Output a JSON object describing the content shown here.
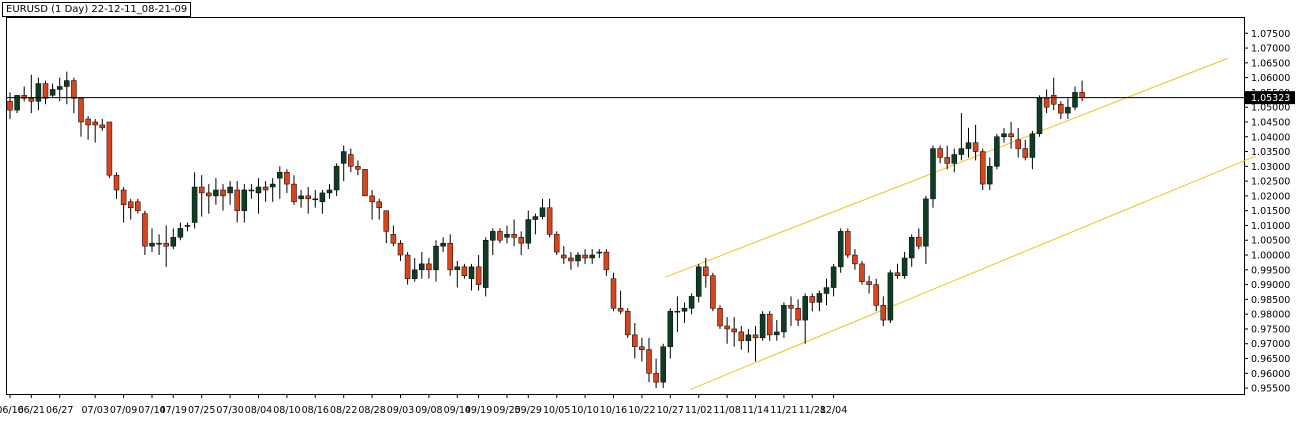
{
  "window": {
    "title": "EURUSD (1 Day) 22-12-11_08-21-09"
  },
  "colors": {
    "up": "#0f3d24",
    "down": "#d9441c",
    "wick": "#000000",
    "channel": "#f2c21b",
    "price_line": "#000000",
    "price_tag_bg": "#000000",
    "price_tag_text": "#ffffff"
  },
  "chart_data": {
    "type": "candlestick",
    "symbol": "EURUSD",
    "timeframe": "1 Day",
    "ylim": [
      0.953,
      1.0805
    ],
    "current_price": 1.05323,
    "current_price_label": "1.05323",
    "y_ticks": [
      "1.07500",
      "1.07000",
      "1.06500",
      "1.06000",
      "1.05500",
      "1.05000",
      "1.04500",
      "1.04000",
      "1.03500",
      "1.03000",
      "1.02500",
      "1.02000",
      "1.01500",
      "1.01000",
      "1.00500",
      "1.00000",
      "0.99500",
      "0.99000",
      "0.98500",
      "0.98000",
      "0.97500",
      "0.97000",
      "0.96500",
      "0.96000",
      "0.95500"
    ],
    "x_ticks": [
      {
        "label": "06/16",
        "index": 0
      },
      {
        "label": "06/21",
        "index": 3
      },
      {
        "label": "06/27",
        "index": 7
      },
      {
        "label": "07/03",
        "index": 12
      },
      {
        "label": "07/09",
        "index": 16
      },
      {
        "label": "07/14",
        "index": 20
      },
      {
        "label": "07/19",
        "index": 23
      },
      {
        "label": "07/25",
        "index": 27
      },
      {
        "label": "07/30",
        "index": 31
      },
      {
        "label": "08/04",
        "index": 35
      },
      {
        "label": "08/10",
        "index": 39
      },
      {
        "label": "08/16",
        "index": 43
      },
      {
        "label": "08/22",
        "index": 47
      },
      {
        "label": "08/28",
        "index": 51
      },
      {
        "label": "09/03",
        "index": 55
      },
      {
        "label": "09/08",
        "index": 59
      },
      {
        "label": "09/14",
        "index": 63
      },
      {
        "label": "09/19",
        "index": 66
      },
      {
        "label": "09/25",
        "index": 70
      },
      {
        "label": "09/29",
        "index": 73
      },
      {
        "label": "10/05",
        "index": 77
      },
      {
        "label": "10/10",
        "index": 81
      },
      {
        "label": "10/16",
        "index": 85
      },
      {
        "label": "10/22",
        "index": 89
      },
      {
        "label": "10/27",
        "index": 93
      },
      {
        "label": "11/02",
        "index": 97
      },
      {
        "label": "11/08",
        "index": 101
      },
      {
        "label": "11/14",
        "index": 105
      },
      {
        "label": "11/21",
        "index": 109
      },
      {
        "label": "11/28",
        "index": 113
      },
      {
        "label": "12/04",
        "index": 116
      }
    ],
    "candles": [
      {
        "o": 1.052,
        "h": 1.055,
        "l": 1.046,
        "c": 1.049
      },
      {
        "o": 1.049,
        "h": 1.054,
        "l": 1.048,
        "c": 1.054
      },
      {
        "o": 1.054,
        "h": 1.057,
        "l": 1.052,
        "c": 1.053
      },
      {
        "o": 1.053,
        "h": 1.061,
        "l": 1.048,
        "c": 1.052
      },
      {
        "o": 1.052,
        "h": 1.06,
        "l": 1.049,
        "c": 1.058
      },
      {
        "o": 1.058,
        "h": 1.059,
        "l": 1.051,
        "c": 1.053
      },
      {
        "o": 1.054,
        "h": 1.058,
        "l": 1.053,
        "c": 1.056
      },
      {
        "o": 1.056,
        "h": 1.06,
        "l": 1.052,
        "c": 1.057
      },
      {
        "o": 1.057,
        "h": 1.062,
        "l": 1.051,
        "c": 1.059
      },
      {
        "o": 1.059,
        "h": 1.06,
        "l": 1.048,
        "c": 1.053
      },
      {
        "o": 1.053,
        "h": 1.053,
        "l": 1.04,
        "c": 1.045
      },
      {
        "o": 1.046,
        "h": 1.047,
        "l": 1.039,
        "c": 1.044
      },
      {
        "o": 1.045,
        "h": 1.046,
        "l": 1.038,
        "c": 1.044
      },
      {
        "o": 1.044,
        "h": 1.046,
        "l": 1.042,
        "c": 1.043
      },
      {
        "o": 1.045,
        "h": 1.045,
        "l": 1.026,
        "c": 1.027
      },
      {
        "o": 1.027,
        "h": 1.028,
        "l": 1.019,
        "c": 1.022
      },
      {
        "o": 1.022,
        "h": 1.023,
        "l": 1.011,
        "c": 1.017
      },
      {
        "o": 1.018,
        "h": 1.019,
        "l": 1.012,
        "c": 1.016
      },
      {
        "o": 1.018,
        "h": 1.019,
        "l": 1.014,
        "c": 1.015
      },
      {
        "o": 1.014,
        "h": 1.015,
        "l": 1.0,
        "c": 1.003
      },
      {
        "o": 1.003,
        "h": 1.009,
        "l": 1.001,
        "c": 1.004
      },
      {
        "o": 1.004,
        "h": 1.007,
        "l": 1.0,
        "c": 1.004
      },
      {
        "o": 1.004,
        "h": 1.01,
        "l": 0.996,
        "c": 1.003
      },
      {
        "o": 1.003,
        "h": 1.009,
        "l": 1.002,
        "c": 1.006
      },
      {
        "o": 1.006,
        "h": 1.011,
        "l": 1.005,
        "c": 1.009
      },
      {
        "o": 1.01,
        "h": 1.011,
        "l": 1.008,
        "c": 1.01
      },
      {
        "o": 1.011,
        "h": 1.028,
        "l": 1.009,
        "c": 1.023
      },
      {
        "o": 1.023,
        "h": 1.027,
        "l": 1.013,
        "c": 1.021
      },
      {
        "o": 1.021,
        "h": 1.024,
        "l": 1.014,
        "c": 1.02
      },
      {
        "o": 1.02,
        "h": 1.026,
        "l": 1.017,
        "c": 1.022
      },
      {
        "o": 1.022,
        "h": 1.024,
        "l": 1.015,
        "c": 1.02
      },
      {
        "o": 1.021,
        "h": 1.025,
        "l": 1.017,
        "c": 1.023
      },
      {
        "o": 1.022,
        "h": 1.025,
        "l": 1.011,
        "c": 1.015
      },
      {
        "o": 1.015,
        "h": 1.024,
        "l": 1.011,
        "c": 1.022
      },
      {
        "o": 1.022,
        "h": 1.024,
        "l": 1.019,
        "c": 1.022
      },
      {
        "o": 1.021,
        "h": 1.026,
        "l": 1.014,
        "c": 1.023
      },
      {
        "o": 1.023,
        "h": 1.025,
        "l": 1.018,
        "c": 1.022
      },
      {
        "o": 1.023,
        "h": 1.026,
        "l": 1.018,
        "c": 1.024
      },
      {
        "o": 1.026,
        "h": 1.03,
        "l": 1.019,
        "c": 1.028
      },
      {
        "o": 1.028,
        "h": 1.029,
        "l": 1.021,
        "c": 1.024
      },
      {
        "o": 1.024,
        "h": 1.027,
        "l": 1.017,
        "c": 1.018
      },
      {
        "o": 1.019,
        "h": 1.022,
        "l": 1.016,
        "c": 1.02
      },
      {
        "o": 1.02,
        "h": 1.023,
        "l": 1.014,
        "c": 1.019
      },
      {
        "o": 1.019,
        "h": 1.022,
        "l": 1.016,
        "c": 1.019
      },
      {
        "o": 1.018,
        "h": 1.022,
        "l": 1.014,
        "c": 1.021
      },
      {
        "o": 1.021,
        "h": 1.024,
        "l": 1.019,
        "c": 1.022
      },
      {
        "o": 1.022,
        "h": 1.031,
        "l": 1.02,
        "c": 1.03
      },
      {
        "o": 1.031,
        "h": 1.037,
        "l": 1.025,
        "c": 1.035
      },
      {
        "o": 1.034,
        "h": 1.036,
        "l": 1.028,
        "c": 1.03
      },
      {
        "o": 1.03,
        "h": 1.032,
        "l": 1.027,
        "c": 1.029
      },
      {
        "o": 1.029,
        "h": 1.029,
        "l": 1.02,
        "c": 1.02
      },
      {
        "o": 1.02,
        "h": 1.022,
        "l": 1.012,
        "c": 1.018
      },
      {
        "o": 1.018,
        "h": 1.019,
        "l": 1.012,
        "c": 1.016
      },
      {
        "o": 1.015,
        "h": 1.015,
        "l": 1.004,
        "c": 1.008
      },
      {
        "o": 1.007,
        "h": 1.01,
        "l": 1.003,
        "c": 1.004
      },
      {
        "o": 1.004,
        "h": 1.005,
        "l": 0.998,
        "c": 1.0
      },
      {
        "o": 1.0,
        "h": 1.001,
        "l": 0.99,
        "c": 0.992
      },
      {
        "o": 0.992,
        "h": 0.999,
        "l": 0.991,
        "c": 0.995
      },
      {
        "o": 0.995,
        "h": 1.001,
        "l": 0.992,
        "c": 0.997
      },
      {
        "o": 0.997,
        "h": 0.999,
        "l": 0.992,
        "c": 0.995
      },
      {
        "o": 0.995,
        "h": 1.005,
        "l": 0.991,
        "c": 1.003
      },
      {
        "o": 1.003,
        "h": 1.006,
        "l": 1.001,
        "c": 1.004
      },
      {
        "o": 1.004,
        "h": 1.007,
        "l": 0.993,
        "c": 0.995
      },
      {
        "o": 0.995,
        "h": 0.998,
        "l": 0.989,
        "c": 0.996
      },
      {
        "o": 0.996,
        "h": 0.997,
        "l": 0.992,
        "c": 0.993
      },
      {
        "o": 0.992,
        "h": 0.997,
        "l": 0.988,
        "c": 0.996
      },
      {
        "o": 0.996,
        "h": 1.0,
        "l": 0.988,
        "c": 0.99
      },
      {
        "o": 0.989,
        "h": 1.006,
        "l": 0.986,
        "c": 1.005
      },
      {
        "o": 1.005,
        "h": 1.009,
        "l": 1.0,
        "c": 1.008
      },
      {
        "o": 1.008,
        "h": 1.009,
        "l": 1.004,
        "c": 1.005
      },
      {
        "o": 1.006,
        "h": 1.01,
        "l": 1.004,
        "c": 1.007
      },
      {
        "o": 1.007,
        "h": 1.012,
        "l": 1.003,
        "c": 1.006
      },
      {
        "o": 1.006,
        "h": 1.008,
        "l": 1.0,
        "c": 1.004
      },
      {
        "o": 1.004,
        "h": 1.015,
        "l": 1.002,
        "c": 1.012
      },
      {
        "o": 1.012,
        "h": 1.014,
        "l": 1.007,
        "c": 1.013
      },
      {
        "o": 1.013,
        "h": 1.019,
        "l": 1.012,
        "c": 1.016
      },
      {
        "o": 1.016,
        "h": 1.019,
        "l": 1.006,
        "c": 1.007
      },
      {
        "o": 1.007,
        "h": 1.008,
        "l": 1.0,
        "c": 1.001
      },
      {
        "o": 1.0,
        "h": 1.003,
        "l": 0.997,
        "c": 0.999
      },
      {
        "o": 0.999,
        "h": 1.001,
        "l": 0.995,
        "c": 0.998
      },
      {
        "o": 0.998,
        "h": 1.001,
        "l": 0.996,
        "c": 1.0
      },
      {
        "o": 1.0,
        "h": 1.002,
        "l": 0.997,
        "c": 0.999
      },
      {
        "o": 0.999,
        "h": 1.002,
        "l": 0.997,
        "c": 1.0
      },
      {
        "o": 1.001,
        "h": 1.002,
        "l": 0.999,
        "c": 1.001
      },
      {
        "o": 1.001,
        "h": 1.002,
        "l": 0.993,
        "c": 0.995
      },
      {
        "o": 0.992,
        "h": 0.994,
        "l": 0.981,
        "c": 0.982
      },
      {
        "o": 0.982,
        "h": 0.988,
        "l": 0.98,
        "c": 0.981
      },
      {
        "o": 0.981,
        "h": 0.982,
        "l": 0.972,
        "c": 0.973
      },
      {
        "o": 0.973,
        "h": 0.977,
        "l": 0.965,
        "c": 0.969
      },
      {
        "o": 0.969,
        "h": 0.972,
        "l": 0.964,
        "c": 0.968
      },
      {
        "o": 0.968,
        "h": 0.972,
        "l": 0.957,
        "c": 0.96
      },
      {
        "o": 0.96,
        "h": 0.965,
        "l": 0.955,
        "c": 0.957
      },
      {
        "o": 0.957,
        "h": 0.97,
        "l": 0.955,
        "c": 0.969
      },
      {
        "o": 0.969,
        "h": 0.982,
        "l": 0.965,
        "c": 0.981
      },
      {
        "o": 0.981,
        "h": 0.986,
        "l": 0.974,
        "c": 0.981
      },
      {
        "o": 0.981,
        "h": 0.984,
        "l": 0.977,
        "c": 0.982
      },
      {
        "o": 0.982,
        "h": 0.987,
        "l": 0.98,
        "c": 0.986
      },
      {
        "o": 0.986,
        "h": 0.997,
        "l": 0.984,
        "c": 0.996
      },
      {
        "o": 0.996,
        "h": 0.999,
        "l": 0.989,
        "c": 0.993
      },
      {
        "o": 0.993,
        "h": 0.994,
        "l": 0.981,
        "c": 0.982
      },
      {
        "o": 0.982,
        "h": 0.983,
        "l": 0.975,
        "c": 0.976
      },
      {
        "o": 0.976,
        "h": 0.979,
        "l": 0.97,
        "c": 0.975
      },
      {
        "o": 0.975,
        "h": 0.979,
        "l": 0.969,
        "c": 0.974
      },
      {
        "o": 0.974,
        "h": 0.976,
        "l": 0.968,
        "c": 0.971
      },
      {
        "o": 0.971,
        "h": 0.975,
        "l": 0.967,
        "c": 0.973
      },
      {
        "o": 0.973,
        "h": 0.976,
        "l": 0.964,
        "c": 0.972
      },
      {
        "o": 0.972,
        "h": 0.981,
        "l": 0.971,
        "c": 0.98
      },
      {
        "o": 0.98,
        "h": 0.981,
        "l": 0.971,
        "c": 0.973
      },
      {
        "o": 0.973,
        "h": 0.978,
        "l": 0.971,
        "c": 0.974
      },
      {
        "o": 0.974,
        "h": 0.984,
        "l": 0.972,
        "c": 0.983
      },
      {
        "o": 0.983,
        "h": 0.986,
        "l": 0.976,
        "c": 0.982
      },
      {
        "o": 0.982,
        "h": 0.985,
        "l": 0.976,
        "c": 0.978
      },
      {
        "o": 0.978,
        "h": 0.987,
        "l": 0.97,
        "c": 0.986
      },
      {
        "o": 0.986,
        "h": 0.987,
        "l": 0.981,
        "c": 0.984
      },
      {
        "o": 0.984,
        "h": 0.988,
        "l": 0.981,
        "c": 0.987
      },
      {
        "o": 0.987,
        "h": 0.992,
        "l": 0.983,
        "c": 0.989
      },
      {
        "o": 0.989,
        "h": 0.997,
        "l": 0.986,
        "c": 0.996
      },
      {
        "o": 0.996,
        "h": 1.009,
        "l": 0.994,
        "c": 1.008
      },
      {
        "o": 1.008,
        "h": 1.009,
        "l": 0.999,
        "c": 1.0
      },
      {
        "o": 1.0,
        "h": 1.002,
        "l": 0.995,
        "c": 0.997
      },
      {
        "o": 0.997,
        "h": 0.998,
        "l": 0.99,
        "c": 0.991
      },
      {
        "o": 0.991,
        "h": 0.993,
        "l": 0.987,
        "c": 0.99
      },
      {
        "o": 0.99,
        "h": 0.992,
        "l": 0.981,
        "c": 0.983
      },
      {
        "o": 0.983,
        "h": 0.986,
        "l": 0.976,
        "c": 0.978
      },
      {
        "o": 0.978,
        "h": 0.995,
        "l": 0.977,
        "c": 0.994
      },
      {
        "o": 0.994,
        "h": 0.997,
        "l": 0.992,
        "c": 0.993
      },
      {
        "o": 0.993,
        "h": 1.001,
        "l": 0.992,
        "c": 0.999
      },
      {
        "o": 0.999,
        "h": 1.007,
        "l": 0.996,
        "c": 1.006
      },
      {
        "o": 1.006,
        "h": 1.009,
        "l": 1.002,
        "c": 1.003
      },
      {
        "o": 1.003,
        "h": 1.02,
        "l": 0.997,
        "c": 1.019
      },
      {
        "o": 1.019,
        "h": 1.037,
        "l": 1.016,
        "c": 1.036
      },
      {
        "o": 1.036,
        "h": 1.037,
        "l": 1.031,
        "c": 1.033
      },
      {
        "o": 1.033,
        "h": 1.037,
        "l": 1.029,
        "c": 1.031
      },
      {
        "o": 1.031,
        "h": 1.036,
        "l": 1.028,
        "c": 1.034
      },
      {
        "o": 1.034,
        "h": 1.048,
        "l": 1.032,
        "c": 1.036
      },
      {
        "o": 1.036,
        "h": 1.043,
        "l": 1.033,
        "c": 1.038
      },
      {
        "o": 1.038,
        "h": 1.044,
        "l": 1.032,
        "c": 1.035
      },
      {
        "o": 1.035,
        "h": 1.036,
        "l": 1.022,
        "c": 1.024
      },
      {
        "o": 1.024,
        "h": 1.033,
        "l": 1.022,
        "c": 1.03
      },
      {
        "o": 1.03,
        "h": 1.041,
        "l": 1.029,
        "c": 1.04
      },
      {
        "o": 1.04,
        "h": 1.043,
        "l": 1.038,
        "c": 1.041
      },
      {
        "o": 1.041,
        "h": 1.045,
        "l": 1.036,
        "c": 1.04
      },
      {
        "o": 1.039,
        "h": 1.043,
        "l": 1.033,
        "c": 1.036
      },
      {
        "o": 1.036,
        "h": 1.039,
        "l": 1.032,
        "c": 1.033
      },
      {
        "o": 1.033,
        "h": 1.042,
        "l": 1.029,
        "c": 1.041
      },
      {
        "o": 1.041,
        "h": 1.054,
        "l": 1.04,
        "c": 1.053
      },
      {
        "o": 1.053,
        "h": 1.056,
        "l": 1.048,
        "c": 1.05
      },
      {
        "o": 1.054,
        "h": 1.06,
        "l": 1.049,
        "c": 1.051
      },
      {
        "o": 1.051,
        "h": 1.052,
        "l": 1.046,
        "c": 1.048
      },
      {
        "o": 1.048,
        "h": 1.053,
        "l": 1.046,
        "c": 1.05
      },
      {
        "o": 1.05,
        "h": 1.057,
        "l": 1.049,
        "c": 1.055
      },
      {
        "o": 1.055,
        "h": 1.059,
        "l": 1.052,
        "c": 1.0532
      }
    ],
    "channel": {
      "upper": [
        {
          "index": 92.3,
          "price": 0.9925
        },
        {
          "index": 171.5,
          "price": 1.0665
        }
      ],
      "lower": [
        {
          "index": 95.8,
          "price": 0.9545
        },
        {
          "index": 175.5,
          "price": 1.0335
        }
      ]
    },
    "grid": false
  }
}
